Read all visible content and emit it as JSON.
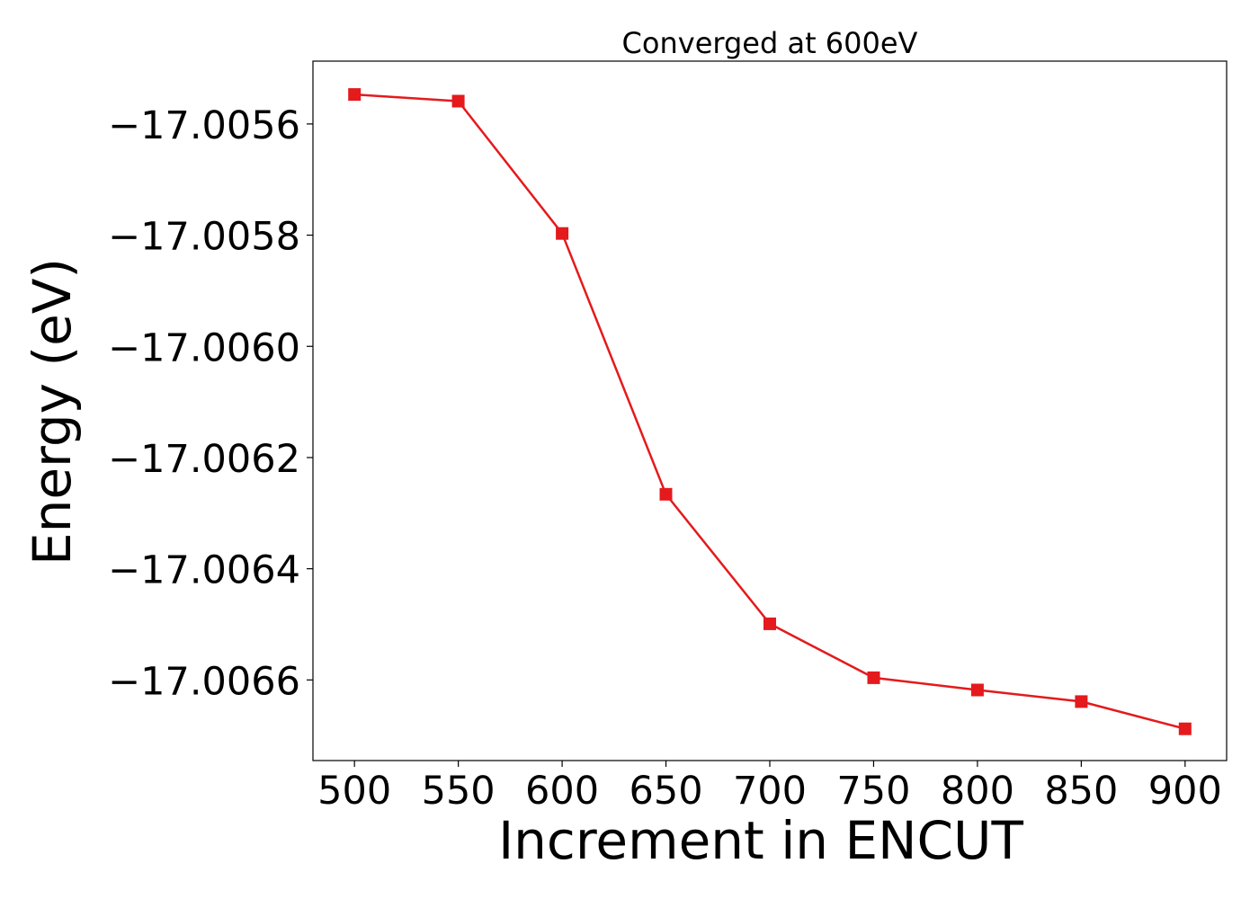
{
  "chart_data": {
    "type": "line",
    "title": "Converged at 600eV",
    "xlabel": "Increment in ENCUT",
    "ylabel": "Energy (eV)",
    "x": [
      500,
      550,
      600,
      650,
      700,
      750,
      800,
      850,
      900
    ],
    "y": [
      -17.005547,
      -17.005559,
      -17.005797,
      -17.006266,
      -17.006499,
      -17.006596,
      -17.006618,
      -17.006639,
      -17.006688
    ],
    "xlim": [
      480,
      920
    ],
    "ylim": [
      -17.006745,
      -17.005487
    ],
    "xticks": [
      500,
      550,
      600,
      650,
      700,
      750,
      800,
      850,
      900
    ],
    "yticks": [
      -17.0056,
      -17.0058,
      -17.006,
      -17.0062,
      -17.0064,
      -17.0066
    ],
    "ytick_labels": [
      "−17.0056",
      "−17.0058",
      "−17.0060",
      "−17.0062",
      "−17.0064",
      "−17.0066"
    ],
    "line_color": "#e41a1c",
    "marker": "square",
    "grid": false
  }
}
